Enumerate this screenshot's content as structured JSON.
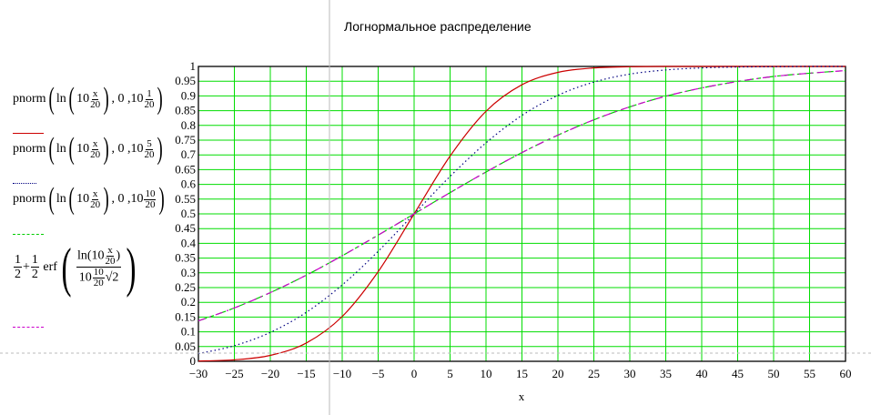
{
  "chart_data": {
    "type": "line",
    "title": "Логнормальное распределение",
    "xlabel": "x",
    "ylabel": "",
    "xlim": [
      -30,
      60
    ],
    "ylim": [
      0,
      1
    ],
    "x_ticks": [
      "−30",
      "−25",
      "−20",
      "−15",
      "−10",
      "−5",
      "0",
      "5",
      "10",
      "15",
      "20",
      "25",
      "30",
      "35",
      "40",
      "45",
      "50",
      "55",
      "60"
    ],
    "y_ticks": [
      "0",
      "0.05",
      "0.1",
      "0.15",
      "0.2",
      "0.25",
      "0.3",
      "0.35",
      "0.4",
      "0.45",
      "0.5",
      "0.55",
      "0.6",
      "0.65",
      "0.7",
      "0.75",
      "0.8",
      "0.85",
      "0.9",
      "0.95",
      "1"
    ],
    "grid": true,
    "grid_color": "#00dd00",
    "x": [
      -30,
      -25,
      -20,
      -15,
      -10,
      -5,
      0,
      5,
      10,
      15,
      20,
      25,
      30,
      35,
      40,
      45,
      50,
      55,
      60
    ],
    "series": [
      {
        "color": "#cc0000",
        "style": "solid",
        "values": [
          0.001,
          0.005,
          0.02,
          0.062,
          0.152,
          0.304,
          0.5,
          0.696,
          0.848,
          0.938,
          0.98,
          0.995,
          0.999,
          1,
          1,
          1,
          1,
          1,
          1
        ]
      },
      {
        "color": "#000080",
        "style": "dotted",
        "values": [
          0.026,
          0.053,
          0.098,
          0.166,
          0.259,
          0.373,
          0.5,
          0.627,
          0.741,
          0.834,
          0.902,
          0.947,
          0.974,
          0.988,
          0.995,
          0.998,
          0.999,
          1,
          1
        ]
      },
      {
        "color": "#00cc00",
        "style": "dashed",
        "values": [
          0.137,
          0.181,
          0.233,
          0.292,
          0.358,
          0.428,
          0.5,
          0.572,
          0.642,
          0.708,
          0.767,
          0.819,
          0.863,
          0.899,
          0.927,
          0.949,
          0.966,
          0.977,
          0.986
        ]
      },
      {
        "color": "#cc00cc",
        "style": "dashdot",
        "values": [
          0.137,
          0.181,
          0.233,
          0.292,
          0.358,
          0.428,
          0.5,
          0.572,
          0.642,
          0.708,
          0.767,
          0.819,
          0.863,
          0.899,
          0.927,
          0.949,
          0.966,
          0.977,
          0.986
        ]
      }
    ]
  },
  "legend": {
    "fn": "pnorm",
    "ln": "ln",
    "ten": "10",
    "x": "x",
    "twenty": "20",
    "zero": ", 0 ,",
    "sig": [
      "1",
      "5",
      "10"
    ],
    "half": "1",
    "two": "2",
    "plus": "+",
    "erf": "erf",
    "sqrt": "√2"
  }
}
